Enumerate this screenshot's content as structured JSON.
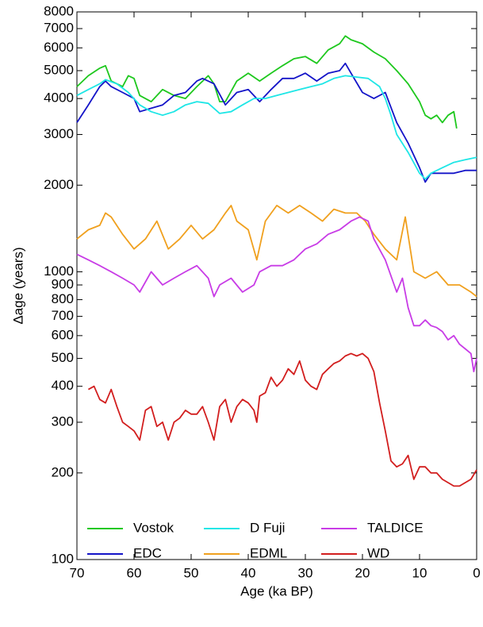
{
  "chart_data": {
    "type": "line",
    "xlabel": "Age (ka BP)",
    "ylabel": "Δage (years)",
    "xlim": [
      70,
      0
    ],
    "xticks": [
      70,
      60,
      50,
      40,
      30,
      20,
      10,
      0
    ],
    "ylim": [
      100,
      8000
    ],
    "ylog": true,
    "yticks": [
      100,
      200,
      300,
      400,
      500,
      600,
      700,
      800,
      900,
      1000,
      2000,
      3000,
      4000,
      5000,
      6000,
      7000,
      8000
    ],
    "legend": "lower center",
    "series": [
      {
        "name": "Vostok",
        "color": "#1ec81e",
        "x": [
          70,
          68,
          66,
          65,
          64,
          62,
          61,
          60,
          59,
          57,
          55,
          53,
          51,
          49,
          47,
          46,
          45,
          44,
          42,
          40,
          38,
          36,
          34,
          32,
          30,
          28,
          26,
          24,
          23,
          22,
          20,
          18,
          16,
          14,
          12,
          10,
          9,
          8,
          7,
          6,
          5,
          4,
          3.5
        ],
        "values": [
          4400,
          4800,
          5100,
          5200,
          4600,
          4400,
          4800,
          4700,
          4100,
          3900,
          4300,
          4100,
          4000,
          4400,
          4800,
          4500,
          3900,
          3900,
          4600,
          4900,
          4600,
          4900,
          5200,
          5500,
          5600,
          5300,
          5900,
          6200,
          6600,
          6400,
          6200,
          5800,
          5500,
          5000,
          4500,
          3900,
          3500,
          3400,
          3500,
          3300,
          3500,
          3600,
          3150
        ]
      },
      {
        "name": "EDC",
        "color": "#1414c8",
        "x": [
          70,
          68,
          66,
          65,
          64,
          62,
          60,
          59,
          57,
          55,
          53,
          51,
          49,
          48,
          46,
          44,
          42,
          40,
          38,
          36,
          34,
          32,
          30,
          28,
          26,
          24,
          23,
          22,
          20,
          18,
          16,
          14,
          12,
          10,
          9,
          8,
          6,
          4,
          2,
          0
        ],
        "values": [
          3300,
          3800,
          4400,
          4600,
          4400,
          4200,
          4000,
          3600,
          3700,
          3800,
          4100,
          4200,
          4600,
          4700,
          4500,
          3800,
          4200,
          4300,
          3900,
          4300,
          4700,
          4700,
          4900,
          4600,
          4900,
          5000,
          5300,
          4900,
          4200,
          4000,
          4200,
          3300,
          2800,
          2300,
          2050,
          2200,
          2200,
          2200,
          2250,
          2250
        ]
      },
      {
        "name": "D Fuji",
        "color": "#1ee6e6",
        "x": [
          70,
          68,
          66,
          65,
          63,
          61,
          59,
          57,
          55,
          53,
          51,
          49,
          47,
          45,
          43,
          41,
          39,
          37,
          35,
          33,
          31,
          29,
          27,
          25,
          23,
          21,
          19,
          17,
          16,
          15,
          14,
          12,
          10,
          9,
          8,
          6,
          4,
          2,
          0
        ],
        "values": [
          4100,
          4300,
          4500,
          4650,
          4500,
          4200,
          3800,
          3600,
          3500,
          3600,
          3800,
          3900,
          3850,
          3550,
          3600,
          3800,
          4000,
          4000,
          4100,
          4200,
          4300,
          4400,
          4500,
          4700,
          4800,
          4750,
          4700,
          4400,
          4000,
          3500,
          3000,
          2600,
          2200,
          2100,
          2200,
          2300,
          2400,
          2450,
          2500
        ]
      },
      {
        "name": "EDML",
        "color": "#f0a01e",
        "x": [
          70,
          68,
          66,
          65,
          64,
          62,
          60,
          58,
          56,
          54,
          52,
          50,
          48,
          46,
          44,
          43,
          42,
          40,
          38.5,
          37,
          35,
          33,
          31,
          29,
          27,
          25,
          23,
          21,
          19.5,
          18,
          16,
          14,
          12.5,
          11,
          9,
          7,
          5,
          3,
          1,
          0
        ],
        "values": [
          1300,
          1400,
          1450,
          1600,
          1550,
          1350,
          1200,
          1300,
          1500,
          1200,
          1300,
          1450,
          1300,
          1400,
          1600,
          1700,
          1500,
          1400,
          1100,
          1500,
          1700,
          1600,
          1700,
          1600,
          1500,
          1650,
          1600,
          1600,
          1500,
          1350,
          1200,
          1100,
          1550,
          1000,
          950,
          1000,
          900,
          900,
          850,
          820
        ]
      },
      {
        "name": "TALDICE",
        "color": "#c83ce6",
        "x": [
          70,
          68,
          66,
          64,
          62,
          60,
          59,
          57,
          55,
          53,
          51,
          49,
          47,
          46,
          45,
          43,
          41,
          39,
          38,
          36,
          34,
          32,
          30,
          28,
          26,
          24,
          22,
          20.5,
          19,
          18,
          16,
          14,
          13,
          12,
          11,
          10,
          9,
          8,
          7,
          6,
          5,
          4,
          3,
          2,
          1,
          0.5,
          0
        ],
        "values": [
          1150,
          1100,
          1050,
          1000,
          950,
          900,
          850,
          1000,
          900,
          950,
          1000,
          1050,
          950,
          820,
          900,
          950,
          850,
          900,
          1000,
          1050,
          1050,
          1100,
          1200,
          1250,
          1350,
          1400,
          1500,
          1550,
          1500,
          1300,
          1100,
          850,
          950,
          750,
          650,
          650,
          680,
          650,
          640,
          620,
          580,
          600,
          560,
          540,
          520,
          450,
          500
        ]
      },
      {
        "name": "WD",
        "color": "#d21e1e",
        "x": [
          68,
          67,
          66,
          65,
          64,
          63,
          62,
          61,
          60,
          59,
          58,
          57,
          56,
          55,
          54,
          53,
          52,
          51,
          50,
          49,
          48,
          47,
          46,
          45,
          44,
          43,
          42,
          41,
          40,
          39,
          38.5,
          38,
          37,
          36,
          35,
          34,
          33,
          32,
          31,
          30,
          29,
          28,
          27,
          26,
          25,
          24,
          23,
          22,
          21,
          20,
          19,
          18,
          17,
          16,
          15,
          14,
          13,
          12,
          11,
          10,
          9,
          8,
          7,
          6,
          5,
          4,
          3,
          2,
          1,
          0
        ],
        "values": [
          390,
          400,
          360,
          350,
          390,
          340,
          300,
          290,
          280,
          260,
          330,
          340,
          290,
          300,
          260,
          300,
          310,
          330,
          320,
          320,
          340,
          300,
          260,
          340,
          360,
          300,
          340,
          360,
          350,
          330,
          300,
          370,
          380,
          430,
          400,
          420,
          460,
          440,
          490,
          420,
          400,
          390,
          440,
          460,
          480,
          490,
          510,
          520,
          510,
          520,
          500,
          450,
          350,
          280,
          220,
          210,
          215,
          230,
          190,
          210,
          210,
          200,
          200,
          190,
          185,
          180,
          180,
          185,
          190,
          205
        ]
      }
    ]
  }
}
